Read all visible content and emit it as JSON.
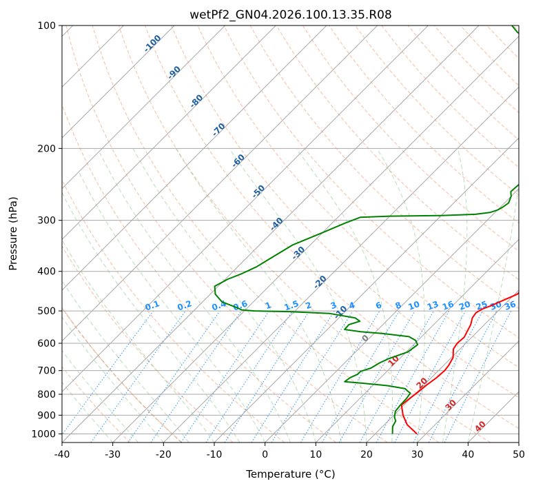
{
  "chart_data": {
    "type": "skew-t",
    "title": "wetPf2_GN04.2026.100.13.35.R08",
    "xlabel": "Temperature (°C)",
    "ylabel": "Pressure (hPa)",
    "xlim": [
      -40,
      50
    ],
    "ylim": [
      1050,
      100
    ],
    "y_scale": "log",
    "grid": true,
    "x_ticks": [
      -40,
      -30,
      -20,
      -10,
      0,
      10,
      20,
      30,
      40,
      50
    ],
    "y_ticks": [
      100,
      200,
      300,
      400,
      500,
      600,
      700,
      800,
      900,
      1000
    ],
    "isotherm_labels": {
      "color": "#1f5fa0",
      "values": [
        -100,
        -90,
        -80,
        -70,
        -60,
        -50,
        -40,
        -30,
        -20,
        -10,
        0,
        10,
        20,
        30,
        40
      ],
      "colors": {
        "cold": "#1f5fa0",
        "zero": "#808080",
        "warm": "#d62728"
      }
    },
    "mixing_ratio_labels": {
      "color": "#1e90ff",
      "pressure": 500,
      "values": [
        "0.1",
        "0.2",
        "0.4",
        "0.6",
        "1",
        "1.5",
        "2",
        "3",
        "4",
        "6",
        "8",
        "10",
        "13",
        "16",
        "20",
        "25",
        "30",
        "36"
      ]
    },
    "series": [
      {
        "name": "temperature",
        "color": "#ff0000",
        "points": [
          [
            28.2,
            1000
          ],
          [
            24.5,
            950
          ],
          [
            21.8,
            900
          ],
          [
            19.5,
            850
          ],
          [
            19.8,
            820
          ],
          [
            20.2,
            790
          ],
          [
            20.5,
            760
          ],
          [
            21.0,
            730
          ],
          [
            21.2,
            700
          ],
          [
            21.0,
            680
          ],
          [
            20.3,
            650
          ],
          [
            18.7,
            620
          ],
          [
            18.3,
            600
          ],
          [
            18.5,
            580
          ],
          [
            17.9,
            560
          ],
          [
            17.3,
            540
          ],
          [
            16.3,
            520
          ],
          [
            16.0,
            505
          ],
          [
            16.5,
            495
          ],
          [
            17.6,
            485
          ],
          [
            19.0,
            470
          ],
          [
            20.5,
            455
          ],
          [
            20.5,
            440
          ],
          [
            20.0,
            420
          ],
          [
            19.0,
            400
          ],
          [
            18.3,
            380
          ],
          [
            17.8,
            360
          ],
          [
            17.0,
            340
          ],
          [
            16.0,
            320
          ],
          [
            14.3,
            300
          ],
          [
            12.8,
            280
          ],
          [
            12.0,
            265
          ],
          [
            11.3,
            250
          ],
          [
            10.4,
            235
          ],
          [
            9.6,
            220
          ],
          [
            8.5,
            205
          ],
          [
            7.3,
            192
          ],
          [
            5.8,
            180
          ]
        ]
      },
      {
        "name": "dewpoint",
        "color": "#008000",
        "points": [
          [
            23.4,
            1000
          ],
          [
            22.0,
            960
          ],
          [
            21.5,
            930
          ],
          [
            20.5,
            910
          ],
          [
            19.5,
            880
          ],
          [
            19.3,
            850
          ],
          [
            19.2,
            820
          ],
          [
            18.9,
            795
          ],
          [
            17.9,
            785
          ],
          [
            17.0,
            775
          ],
          [
            12.9,
            762
          ],
          [
            7.8,
            752
          ],
          [
            3.7,
            745
          ],
          [
            4.0,
            728
          ],
          [
            4.8,
            715
          ],
          [
            4.8,
            703
          ],
          [
            6.2,
            690
          ],
          [
            6.9,
            670
          ],
          [
            7.8,
            655
          ],
          [
            10.3,
            630
          ],
          [
            10.8,
            605
          ],
          [
            9.5,
            590
          ],
          [
            7.5,
            578
          ],
          [
            1.7,
            568
          ],
          [
            -3.0,
            562
          ],
          [
            -6.6,
            555
          ],
          [
            -6.7,
            540
          ],
          [
            -5.2,
            530
          ],
          [
            -6.8,
            520
          ],
          [
            -12.8,
            507
          ],
          [
            -21.0,
            502
          ],
          [
            -28.0,
            500
          ],
          [
            -30.7,
            497
          ],
          [
            -32.3,
            490
          ],
          [
            -36.2,
            475
          ],
          [
            -39.0,
            455
          ],
          [
            -40.7,
            435
          ],
          [
            -39.5,
            418
          ],
          [
            -37.8,
            405
          ],
          [
            -36.3,
            390
          ],
          [
            -35.1,
            370
          ],
          [
            -33.5,
            345
          ],
          [
            -30.1,
            322
          ],
          [
            -27.5,
            305
          ],
          [
            -25.6,
            295
          ],
          [
            -20.0,
            293
          ],
          [
            -10.0,
            292
          ],
          [
            -3.5,
            290
          ],
          [
            -1.0,
            287
          ],
          [
            0.0,
            283
          ],
          [
            0.5,
            278
          ],
          [
            0.8,
            272
          ],
          [
            0.0,
            262
          ],
          [
            -1.0,
            255
          ],
          [
            -0.8,
            245
          ],
          [
            -0.5,
            235
          ],
          [
            0.0,
            225
          ],
          [
            0.0,
            215
          ],
          [
            0.0,
            205
          ],
          [
            -0.5,
            195
          ],
          [
            -0.8,
            185
          ],
          [
            -2.5,
            170
          ],
          [
            -6.0,
            150
          ],
          [
            -12.5,
            130
          ],
          [
            -16.5,
            120
          ],
          [
            -24.0,
            112
          ],
          [
            -31.0,
            104
          ],
          [
            -33.5,
            100
          ]
        ]
      }
    ]
  }
}
